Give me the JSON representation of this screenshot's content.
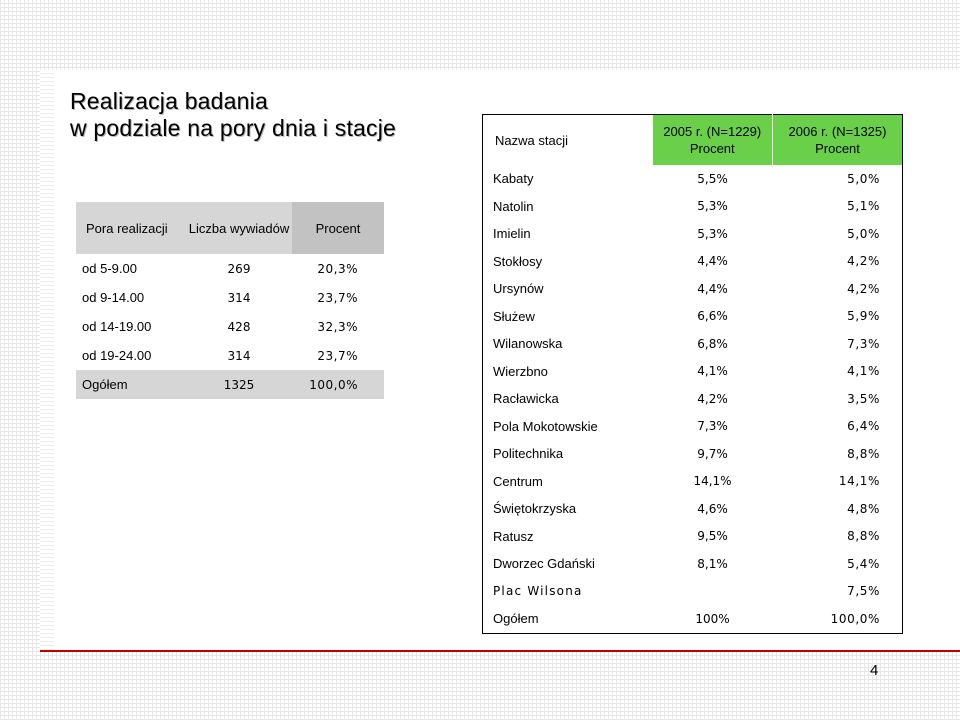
{
  "slide": {
    "title_line1": "Realizacja badania",
    "title_line2": "w podziale na pory dnia i stacje",
    "page_number": "4",
    "accent_color": "#c00000",
    "header_green": "#6ad04a"
  },
  "time_table": {
    "headers": [
      "Pora realizacji",
      "Liczba wywiadów",
      "Procent"
    ],
    "rows": [
      [
        "od 5-9.00",
        "269",
        "20,3%"
      ],
      [
        "od 9-14.00",
        "314",
        "23,7%"
      ],
      [
        "od 14-19.00",
        "428",
        "32,3%"
      ],
      [
        "od 19-24.00",
        "314",
        "23,7%"
      ],
      [
        "Ogółem",
        "1325",
        "100,0%"
      ]
    ]
  },
  "station_table": {
    "headers": {
      "station": "Nazwa stacji",
      "y2005_line1": "2005 r. (N=1229)",
      "y2005_line2": "Procent",
      "y2006_line1": "2006 r. (N=1325)",
      "y2006_line2": "Procent"
    },
    "rows": [
      [
        "Kabaty",
        "5,5%",
        "5,0%"
      ],
      [
        "Natolin",
        "5,3%",
        "5,1%"
      ],
      [
        "Imielin",
        "5,3%",
        "5,0%"
      ],
      [
        "Stokłosy",
        "4,4%",
        "4,2%"
      ],
      [
        "Ursynów",
        "4,4%",
        "4,2%"
      ],
      [
        "Służew",
        "6,6%",
        "5,9%"
      ],
      [
        "Wilanowska",
        "6,8%",
        "7,3%"
      ],
      [
        "Wierzbno",
        "4,1%",
        "4,1%"
      ],
      [
        "Racławicka",
        "4,2%",
        "3,5%"
      ],
      [
        "Pola Mokotowskie",
        "7,3%",
        "6,4%"
      ],
      [
        "Politechnika",
        "9,7%",
        "8,8%"
      ],
      [
        "Centrum",
        "14,1%",
        "14,1%"
      ],
      [
        "Świętokrzyska",
        "4,6%",
        "4,8%"
      ],
      [
        "Ratusz",
        "9,5%",
        "8,8%"
      ],
      [
        "Dworzec Gdański",
        "8,1%",
        "5,4%"
      ],
      [
        "Plac Wilsona",
        "",
        "7,5%"
      ],
      [
        "Ogółem",
        "100%",
        "100,0%"
      ]
    ]
  }
}
